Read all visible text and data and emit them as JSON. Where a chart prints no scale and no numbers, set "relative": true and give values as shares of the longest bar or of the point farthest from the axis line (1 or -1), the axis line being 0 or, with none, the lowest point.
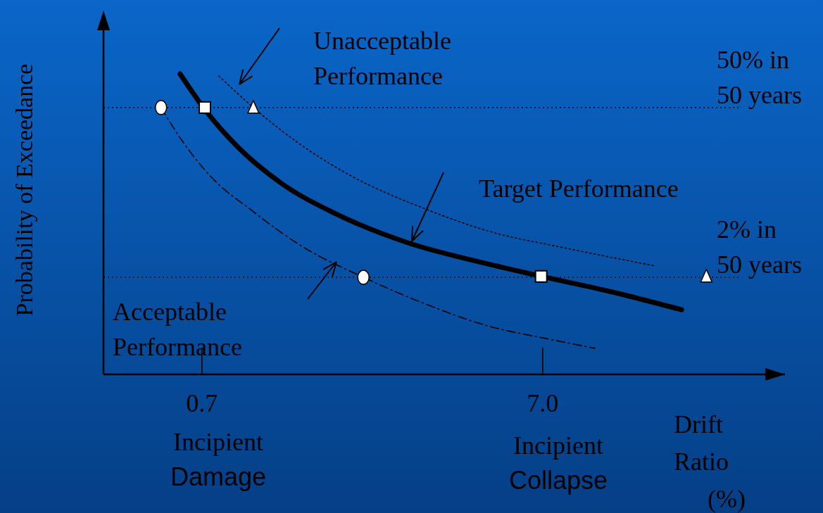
{
  "chart_data": {
    "type": "line",
    "xlabel": "Drift Ratio (%)",
    "ylabel": "Probability of Exceedance",
    "log": "x",
    "relative": true,
    "xlim": [
      0.36,
      36
    ],
    "xticks": [
      0.7,
      {
        "value": 7,
        "label": "7.0"
      }
    ],
    "grid": false,
    "series": [
      {
        "color": "#000000",
        "line_style": "solid",
        "x": [
          0.604,
          0.707,
          0.897,
          1.194,
          1.748,
          2.817,
          4.536,
          6.97,
          11.22,
          17.91
        ],
        "values": [
          1.0,
          0.888,
          0.754,
          0.637,
          0.532,
          0.438,
          0.375,
          0.326,
          0.274,
          0.215
        ]
      },
      {
        "color": "#000000",
        "line_style": "dotted",
        "x": [
          0.785,
          0.991,
          1.313,
          1.923,
          3.098,
          4.99,
          8.04,
          14.94
        ],
        "values": [
          0.993,
          0.888,
          0.778,
          0.66,
          0.555,
          0.473,
          0.422,
          0.361
        ]
      },
      {
        "color": "#000000",
        "line_style": "dashed",
        "x": [
          0.531,
          0.612,
          0.741,
          0.987,
          1.378,
          2.085,
          3.098,
          4.99,
          6.97,
          9.96
        ],
        "values": [
          0.888,
          0.778,
          0.66,
          0.543,
          0.426,
          0.323,
          0.239,
          0.157,
          0.122,
          0.087
        ]
      },
      {
        "type": "scatter",
        "marker": "circle",
        "color": "#ffffff",
        "x": [
          0.531,
          2.085
        ],
        "values": [
          0.888,
          0.323
        ]
      },
      {
        "type": "scatter",
        "marker": "square",
        "color": "#ffffff",
        "x": [
          0.714,
          6.93
        ],
        "values": [
          0.888,
          0.326
        ]
      },
      {
        "type": "scatter",
        "marker": "triangle",
        "color": "#ffffff",
        "x": [
          0.991,
          21.16
        ],
        "values": [
          0.888,
          0.326
        ]
      }
    ],
    "ref_lines": [
      {
        "axis": "y",
        "value": 0.888,
        "label": "50% in 50 years",
        "line_style": "dotted",
        "color": "#000000"
      },
      {
        "axis": "y",
        "value": 0.323,
        "label": "2% in 50 years",
        "line_style": "dotted",
        "color": "#000000"
      }
    ],
    "annotations": [
      "Unacceptable Performance",
      "Target Performance",
      "Acceptable Performance",
      "Incipient Damage",
      "Incipient Collapse"
    ]
  }
}
